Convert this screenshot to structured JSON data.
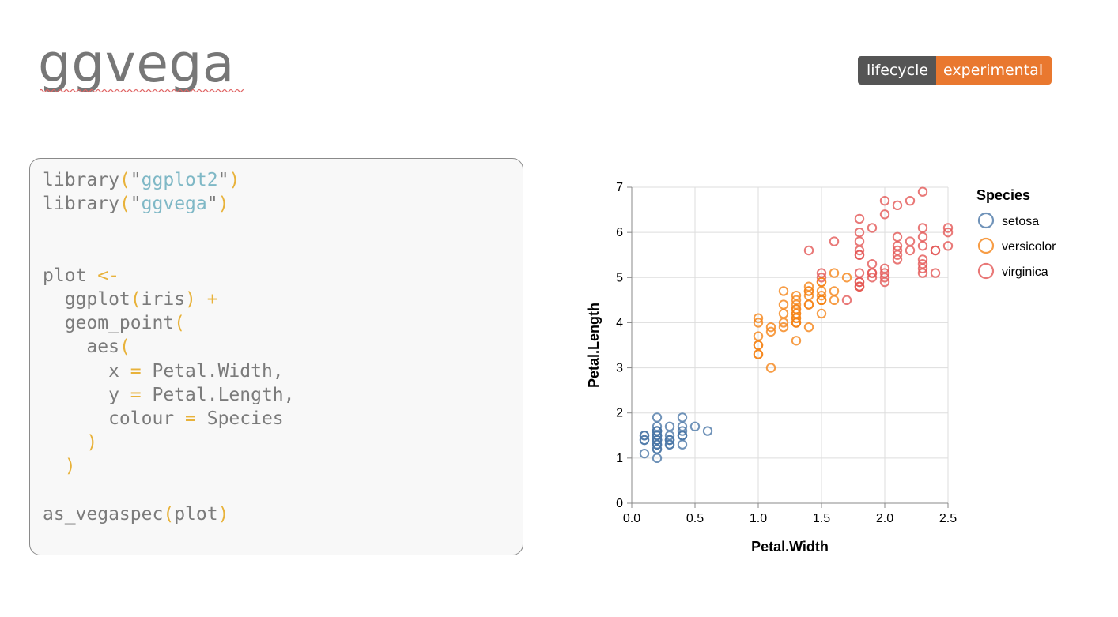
{
  "header": {
    "title": "ggvega",
    "badge_left": "lifecycle",
    "badge_right": "experimental",
    "badge_colors": {
      "left": "#555555",
      "right": "#e9782f"
    }
  },
  "code": {
    "lines": [
      [
        {
          "t": "library",
          "k": "txt"
        },
        {
          "t": "(",
          "k": "punc"
        },
        {
          "t": "\"",
          "k": "txt"
        },
        {
          "t": "ggplot2",
          "k": "str"
        },
        {
          "t": "\"",
          "k": "txt"
        },
        {
          "t": ")",
          "k": "punc"
        }
      ],
      [
        {
          "t": "library",
          "k": "txt"
        },
        {
          "t": "(",
          "k": "punc"
        },
        {
          "t": "\"",
          "k": "txt"
        },
        {
          "t": "ggvega",
          "k": "str"
        },
        {
          "t": "\"",
          "k": "txt"
        },
        {
          "t": ")",
          "k": "punc"
        }
      ],
      [],
      [],
      [
        {
          "t": "plot ",
          "k": "txt"
        },
        {
          "t": "<-",
          "k": "punc"
        }
      ],
      [
        {
          "t": "  ggplot",
          "k": "txt"
        },
        {
          "t": "(",
          "k": "punc"
        },
        {
          "t": "iris",
          "k": "txt"
        },
        {
          "t": ")",
          "k": "punc"
        },
        {
          "t": " ",
          "k": "txt"
        },
        {
          "t": "+",
          "k": "punc"
        }
      ],
      [
        {
          "t": "  geom_point",
          "k": "txt"
        },
        {
          "t": "(",
          "k": "punc"
        }
      ],
      [
        {
          "t": "    aes",
          "k": "txt"
        },
        {
          "t": "(",
          "k": "punc"
        }
      ],
      [
        {
          "t": "      x ",
          "k": "txt"
        },
        {
          "t": "=",
          "k": "punc"
        },
        {
          "t": " Petal.Width,",
          "k": "txt"
        }
      ],
      [
        {
          "t": "      y ",
          "k": "txt"
        },
        {
          "t": "=",
          "k": "punc"
        },
        {
          "t": " Petal.Length,",
          "k": "txt"
        }
      ],
      [
        {
          "t": "      colour ",
          "k": "txt"
        },
        {
          "t": "=",
          "k": "punc"
        },
        {
          "t": " Species",
          "k": "txt"
        }
      ],
      [
        {
          "t": "    ",
          "k": "txt"
        },
        {
          "t": ")",
          "k": "punc"
        }
      ],
      [
        {
          "t": "  ",
          "k": "txt"
        },
        {
          "t": ")",
          "k": "punc"
        }
      ],
      [],
      [
        {
          "t": "as_vegaspec",
          "k": "txt"
        },
        {
          "t": "(",
          "k": "punc"
        },
        {
          "t": "plot",
          "k": "txt"
        },
        {
          "t": ")",
          "k": "punc"
        }
      ]
    ]
  },
  "chart_data": {
    "type": "scatter",
    "title": "",
    "xlabel": "Petal.Width",
    "ylabel": "Petal.Length",
    "xlim": [
      0,
      2.5
    ],
    "ylim": [
      0,
      7
    ],
    "xticks": [
      "0.0",
      "0.5",
      "1.0",
      "1.5",
      "2.0",
      "2.5"
    ],
    "yticks": [
      "0",
      "1",
      "2",
      "3",
      "4",
      "5",
      "6",
      "7"
    ],
    "grid": true,
    "legend": {
      "title": "Species",
      "position": "right"
    },
    "series": [
      {
        "name": "setosa",
        "color": "#4c78a8",
        "points": [
          [
            0.2,
            1.4
          ],
          [
            0.2,
            1.4
          ],
          [
            0.2,
            1.3
          ],
          [
            0.2,
            1.5
          ],
          [
            0.2,
            1.4
          ],
          [
            0.4,
            1.7
          ],
          [
            0.3,
            1.4
          ],
          [
            0.2,
            1.5
          ],
          [
            0.2,
            1.4
          ],
          [
            0.1,
            1.5
          ],
          [
            0.2,
            1.5
          ],
          [
            0.2,
            1.6
          ],
          [
            0.1,
            1.4
          ],
          [
            0.1,
            1.1
          ],
          [
            0.2,
            1.2
          ],
          [
            0.4,
            1.5
          ],
          [
            0.4,
            1.3
          ],
          [
            0.3,
            1.4
          ],
          [
            0.3,
            1.7
          ],
          [
            0.3,
            1.5
          ],
          [
            0.2,
            1.7
          ],
          [
            0.4,
            1.5
          ],
          [
            0.2,
            1.0
          ],
          [
            0.5,
            1.7
          ],
          [
            0.2,
            1.9
          ],
          [
            0.2,
            1.6
          ],
          [
            0.4,
            1.6
          ],
          [
            0.2,
            1.5
          ],
          [
            0.2,
            1.4
          ],
          [
            0.2,
            1.6
          ],
          [
            0.2,
            1.6
          ],
          [
            0.4,
            1.5
          ],
          [
            0.1,
            1.5
          ],
          [
            0.2,
            1.4
          ],
          [
            0.2,
            1.5
          ],
          [
            0.2,
            1.2
          ],
          [
            0.2,
            1.3
          ],
          [
            0.1,
            1.4
          ],
          [
            0.2,
            1.3
          ],
          [
            0.2,
            1.5
          ],
          [
            0.3,
            1.3
          ],
          [
            0.3,
            1.3
          ],
          [
            0.2,
            1.3
          ],
          [
            0.6,
            1.6
          ],
          [
            0.4,
            1.9
          ],
          [
            0.3,
            1.4
          ],
          [
            0.2,
            1.6
          ],
          [
            0.2,
            1.4
          ],
          [
            0.2,
            1.5
          ],
          [
            0.2,
            1.4
          ]
        ]
      },
      {
        "name": "versicolor",
        "color": "#f58518",
        "points": [
          [
            1.4,
            4.7
          ],
          [
            1.5,
            4.5
          ],
          [
            1.5,
            4.9
          ],
          [
            1.3,
            4.0
          ],
          [
            1.5,
            4.6
          ],
          [
            1.3,
            4.5
          ],
          [
            1.6,
            4.7
          ],
          [
            1.0,
            3.3
          ],
          [
            1.3,
            4.6
          ],
          [
            1.4,
            3.9
          ],
          [
            1.0,
            3.5
          ],
          [
            1.5,
            4.2
          ],
          [
            1.0,
            4.0
          ],
          [
            1.4,
            4.7
          ],
          [
            1.3,
            3.6
          ],
          [
            1.4,
            4.4
          ],
          [
            1.5,
            4.5
          ],
          [
            1.0,
            4.1
          ],
          [
            1.5,
            4.5
          ],
          [
            1.1,
            3.9
          ],
          [
            1.8,
            4.8
          ],
          [
            1.3,
            4.0
          ],
          [
            1.5,
            4.9
          ],
          [
            1.2,
            4.7
          ],
          [
            1.3,
            4.3
          ],
          [
            1.4,
            4.4
          ],
          [
            1.4,
            4.8
          ],
          [
            1.7,
            5.0
          ],
          [
            1.5,
            4.5
          ],
          [
            1.0,
            3.5
          ],
          [
            1.1,
            3.8
          ],
          [
            1.0,
            3.7
          ],
          [
            1.2,
            3.9
          ],
          [
            1.6,
            5.1
          ],
          [
            1.5,
            4.5
          ],
          [
            1.6,
            4.5
          ],
          [
            1.5,
            4.7
          ],
          [
            1.3,
            4.4
          ],
          [
            1.3,
            4.1
          ],
          [
            1.3,
            4.0
          ],
          [
            1.2,
            4.4
          ],
          [
            1.4,
            4.6
          ],
          [
            1.2,
            4.0
          ],
          [
            1.0,
            3.3
          ],
          [
            1.3,
            4.2
          ],
          [
            1.2,
            4.2
          ],
          [
            1.3,
            4.2
          ],
          [
            1.3,
            4.3
          ],
          [
            1.1,
            3.0
          ],
          [
            1.3,
            4.1
          ]
        ]
      },
      {
        "name": "virginica",
        "color": "#e45756",
        "points": [
          [
            2.5,
            6.0
          ],
          [
            1.9,
            5.1
          ],
          [
            2.1,
            5.9
          ],
          [
            1.8,
            5.6
          ],
          [
            2.2,
            5.8
          ],
          [
            2.1,
            6.6
          ],
          [
            1.7,
            4.5
          ],
          [
            1.8,
            6.3
          ],
          [
            1.8,
            5.8
          ],
          [
            2.5,
            6.1
          ],
          [
            2.0,
            5.1
          ],
          [
            1.9,
            5.3
          ],
          [
            2.1,
            5.5
          ],
          [
            2.0,
            5.0
          ],
          [
            2.4,
            5.1
          ],
          [
            2.3,
            5.3
          ],
          [
            1.8,
            5.5
          ],
          [
            2.2,
            6.7
          ],
          [
            2.3,
            6.9
          ],
          [
            1.5,
            5.0
          ],
          [
            2.3,
            5.7
          ],
          [
            2.0,
            4.9
          ],
          [
            2.0,
            6.7
          ],
          [
            1.8,
            4.9
          ],
          [
            2.1,
            5.7
          ],
          [
            1.8,
            6.0
          ],
          [
            1.8,
            4.8
          ],
          [
            1.8,
            4.9
          ],
          [
            2.1,
            5.6
          ],
          [
            1.6,
            5.8
          ],
          [
            1.9,
            6.1
          ],
          [
            2.0,
            6.4
          ],
          [
            2.2,
            5.6
          ],
          [
            1.5,
            5.1
          ],
          [
            1.4,
            5.6
          ],
          [
            2.3,
            6.1
          ],
          [
            2.4,
            5.6
          ],
          [
            1.8,
            5.5
          ],
          [
            1.8,
            4.8
          ],
          [
            2.1,
            5.4
          ],
          [
            2.4,
            5.6
          ],
          [
            2.3,
            5.1
          ],
          [
            1.9,
            5.1
          ],
          [
            2.3,
            5.9
          ],
          [
            2.5,
            5.7
          ],
          [
            2.3,
            5.2
          ],
          [
            1.9,
            5.0
          ],
          [
            2.0,
            5.2
          ],
          [
            2.3,
            5.4
          ],
          [
            1.8,
            5.1
          ]
        ]
      }
    ]
  }
}
